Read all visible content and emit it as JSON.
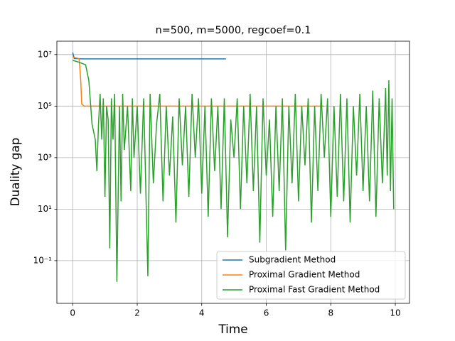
{
  "chart_data": {
    "type": "line",
    "title": "n=500, m=5000, regcoef=0.1",
    "x_label": "Time",
    "y_label": "Duality gap",
    "xlim": [
      -0.49,
      10.44
    ],
    "ylim": [
      0.0022,
      33000000
    ],
    "log_y": true,
    "grid": true,
    "legend_position": "lower right",
    "xticks": [
      0,
      2,
      4,
      6,
      8,
      10
    ],
    "yticks": [
      {
        "value": 0.1,
        "label": "10⁻¹"
      },
      {
        "value": 10,
        "label": "10¹"
      },
      {
        "value": 1000,
        "label": "10³"
      },
      {
        "value": 100000,
        "label": "10⁵"
      },
      {
        "value": 10000000,
        "label": "10⁷"
      }
    ],
    "series": [
      {
        "name": "Subgradient Method",
        "color": "#1f77b4",
        "x": [
          0,
          0.05,
          0.3,
          4.75
        ],
        "values": [
          12000000,
          7000000,
          6800000,
          6800000
        ]
      },
      {
        "name": "Proximal Gradient Method",
        "color": "#ff7f0e",
        "x": [
          0,
          0.2,
          0.25,
          0.28,
          0.35,
          7.8
        ],
        "values": [
          8000000,
          7000000,
          1000000,
          120000,
          100000,
          100000
        ]
      },
      {
        "name": "Proximal Fast Gradient Method",
        "color": "#2ca02c",
        "x": [
          0,
          0.2,
          0.4,
          0.5,
          0.6,
          0.7,
          0.75,
          0.8,
          0.85,
          0.9,
          0.95,
          1.0,
          1.05,
          1.1,
          1.15,
          1.2,
          1.25,
          1.3,
          1.37,
          1.45,
          1.5,
          1.55,
          1.6,
          1.7,
          1.8,
          1.85,
          1.9,
          2.0,
          2.1,
          2.2,
          2.25,
          2.33,
          2.4,
          2.5,
          2.6,
          2.7,
          2.8,
          2.9,
          3.0,
          3.1,
          3.2,
          3.3,
          3.4,
          3.5,
          3.6,
          3.7,
          3.8,
          3.9,
          4.0,
          4.1,
          4.2,
          4.3,
          4.4,
          4.5,
          4.6,
          4.7,
          4.8,
          4.9,
          5.0,
          5.1,
          5.2,
          5.3,
          5.4,
          5.5,
          5.6,
          5.7,
          5.8,
          5.9,
          6.0,
          6.1,
          6.2,
          6.3,
          6.4,
          6.5,
          6.6,
          6.7,
          6.8,
          6.9,
          7.0,
          7.1,
          7.2,
          7.3,
          7.4,
          7.5,
          7.6,
          7.7,
          7.8,
          7.9,
          8.0,
          8.1,
          8.2,
          8.3,
          8.4,
          8.5,
          8.6,
          8.7,
          8.8,
          8.9,
          9.0,
          9.1,
          9.2,
          9.3,
          9.4,
          9.5,
          9.6,
          9.7,
          9.75,
          9.8,
          9.85,
          9.9,
          9.95
        ],
        "values": [
          6000000,
          5000000,
          4000000,
          1000000,
          20000,
          5000,
          300,
          20000,
          300000,
          5000,
          200000,
          30,
          100000,
          30000,
          0.3,
          200000,
          5000,
          300000,
          0.015,
          100000,
          20,
          300000,
          2000,
          100000,
          50,
          200000,
          1000,
          100000,
          40,
          200000,
          500,
          0.025,
          300000,
          100,
          20000,
          300000,
          20,
          100000,
          200,
          40000,
          3,
          200000,
          500,
          100000,
          30,
          300000,
          1000,
          200000,
          40,
          100000,
          5,
          200000,
          300,
          100000,
          10,
          200000,
          0.8,
          30000,
          1000,
          200000,
          10,
          100000,
          100,
          300000,
          50,
          100000,
          0.5,
          200000,
          200,
          30000,
          5,
          100000,
          50,
          200000,
          0.25,
          100000,
          100,
          300000,
          20,
          100000,
          500,
          200000,
          3,
          100000,
          50,
          300000,
          1000,
          200000,
          5,
          100000,
          30,
          300000,
          20,
          200000,
          3,
          100000,
          200,
          300000,
          50,
          100000,
          20,
          400000,
          5,
          200000,
          100,
          500000,
          200,
          1000000,
          50,
          200000,
          10
        ]
      }
    ]
  }
}
